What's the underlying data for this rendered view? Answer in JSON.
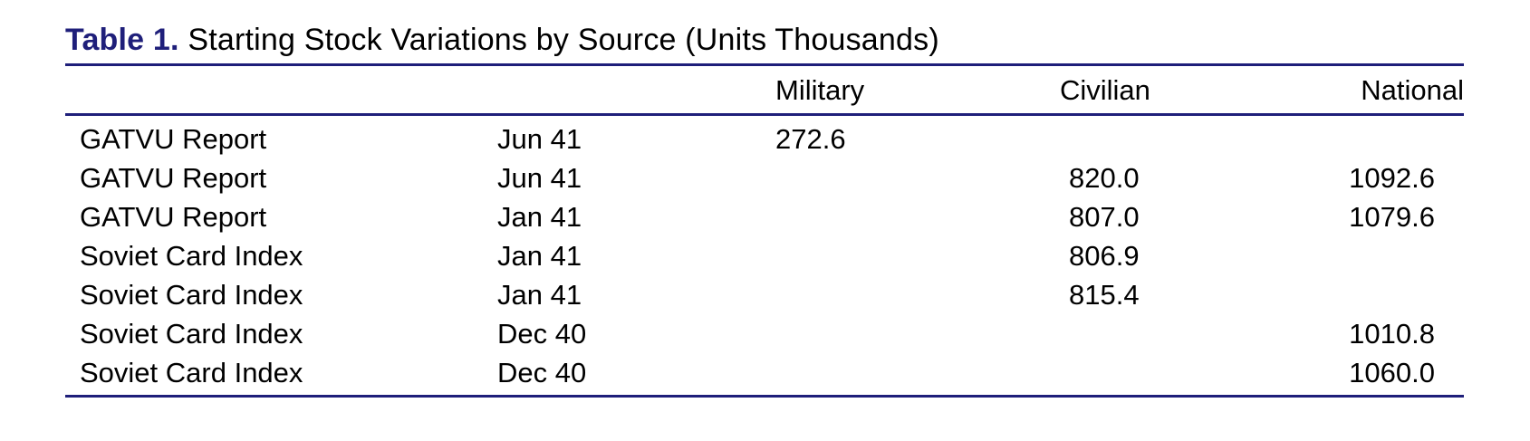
{
  "caption": {
    "label": "Table 1.",
    "title": "Starting Stock Variations by Source (Units Thousands)"
  },
  "columns": {
    "military": "Military",
    "civilian": "Civilian",
    "national": "National"
  },
  "rows": [
    {
      "source": "GATVU Report",
      "date": "Jun 41",
      "military": "272.6",
      "civilian": "",
      "national": ""
    },
    {
      "source": "GATVU Report",
      "date": "Jun 41",
      "military": "",
      "civilian": "820.0",
      "national": "1092.6"
    },
    {
      "source": "GATVU Report",
      "date": "Jan 41",
      "military": "",
      "civilian": "807.0",
      "national": "1079.6"
    },
    {
      "source": "Soviet Card Index",
      "date": "Jan 41",
      "military": "",
      "civilian": "806.9",
      "national": ""
    },
    {
      "source": "Soviet Card Index",
      "date": "Jan 41",
      "military": "",
      "civilian": "815.4",
      "national": ""
    },
    {
      "source": "Soviet Card Index",
      "date": "Dec 40",
      "military": "",
      "civilian": "",
      "national": "1010.8"
    },
    {
      "source": "Soviet Card Index",
      "date": "Dec 40",
      "military": "",
      "civilian": "",
      "national": "1060.0"
    }
  ],
  "colors": {
    "caption_label": "#1f1f7a",
    "rules": "#1f1f7a",
    "text": "#000000"
  }
}
